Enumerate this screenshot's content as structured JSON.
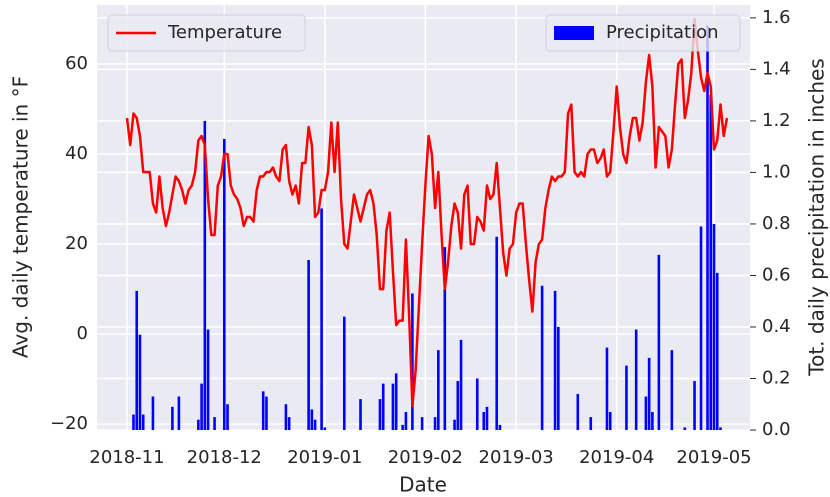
{
  "chart_data": {
    "type": "combo",
    "xlabel": "Date",
    "ylabel": "Avg. daily temperature in °F",
    "y2label": "Tot. daily precipitation in inches",
    "xlim": [
      -9.25,
      192.1
    ],
    "xticks": [
      {
        "value": 0,
        "label": "2018-11"
      },
      {
        "value": 30,
        "label": "2018-12"
      },
      {
        "value": 61,
        "label": "2019-01"
      },
      {
        "value": 92,
        "label": "2019-02"
      },
      {
        "value": 120,
        "label": "2019-03"
      },
      {
        "value": 151,
        "label": "2019-04"
      },
      {
        "value": 181,
        "label": "2019-05"
      }
    ],
    "ylim": [
      -21.3,
      73.1
    ],
    "yticks": [
      {
        "value": -20,
        "label": "−20"
      },
      0,
      20,
      40,
      60
    ],
    "y2lim": [
      0,
      1.65
    ],
    "y2ticks": [
      {
        "value": 0,
        "label": "0.0"
      },
      0.2,
      0.4,
      0.6,
      0.8,
      {
        "value": 1,
        "label": "1.0"
      },
      1.2,
      1.4,
      1.6
    ],
    "grid": true,
    "series": [
      {
        "name": "Temperature",
        "type": "line",
        "color": "#ff0000",
        "legend": "upper left",
        "x": [
          0,
          1,
          2,
          3,
          4,
          5,
          6,
          7,
          8,
          9,
          10,
          11,
          12,
          13,
          14,
          15,
          16,
          17,
          18,
          19,
          20,
          21,
          22,
          23,
          24,
          25,
          26,
          27,
          28,
          29,
          30,
          31,
          32,
          33,
          34,
          35,
          36,
          37,
          38,
          39,
          40,
          41,
          42,
          43,
          44,
          45,
          46,
          47,
          48,
          49,
          50,
          51,
          52,
          53,
          54,
          55,
          56,
          57,
          58,
          59,
          60,
          61,
          62,
          63,
          64,
          65,
          66,
          67,
          68,
          69,
          70,
          71,
          72,
          73,
          74,
          75,
          76,
          77,
          78,
          79,
          80,
          81,
          82,
          83,
          84,
          85,
          86,
          87,
          88,
          89,
          90,
          91,
          92,
          93,
          94,
          95,
          96,
          97,
          98,
          99,
          100,
          101,
          102,
          103,
          104,
          105,
          106,
          107,
          108,
          109,
          110,
          111,
          112,
          113,
          114,
          115,
          116,
          117,
          118,
          119,
          120,
          121,
          122,
          123,
          124,
          125,
          126,
          127,
          128,
          129,
          130,
          131,
          132,
          133,
          134,
          135,
          136,
          137,
          138,
          139,
          140,
          141,
          142,
          143,
          144,
          145,
          146,
          147,
          148,
          149,
          150,
          151,
          152,
          153,
          154,
          155,
          156,
          157,
          158,
          159,
          160,
          161,
          162,
          163,
          164,
          165,
          166,
          167,
          168,
          169,
          170,
          171,
          172,
          173,
          174,
          175,
          176,
          177,
          178,
          179,
          180,
          181,
          182,
          183,
          184,
          185
        ],
        "values": [
          48,
          42,
          49,
          48,
          44,
          36,
          36,
          36,
          29,
          27,
          35,
          28,
          24,
          27,
          31,
          35,
          34,
          32,
          29,
          32,
          33,
          36,
          43,
          44,
          42,
          30,
          22,
          22,
          33,
          35,
          40,
          40,
          33,
          31,
          30,
          28,
          24,
          26,
          26,
          25,
          32,
          35,
          35,
          36,
          36,
          37,
          35,
          34,
          41,
          42,
          34,
          31,
          33,
          29,
          38,
          38,
          46,
          42,
          26,
          27,
          32,
          32,
          36,
          47,
          36,
          47,
          30,
          20,
          19,
          25,
          31,
          28,
          25,
          28,
          31,
          32,
          29,
          22,
          10,
          10,
          23,
          27,
          14,
          2,
          3,
          3,
          21,
          4,
          -16,
          -8,
          6,
          20,
          33,
          44,
          40,
          28,
          36,
          22,
          10,
          16,
          24,
          29,
          27,
          19,
          31,
          33,
          20,
          20,
          26,
          25,
          23,
          33,
          30,
          31,
          38,
          28,
          18,
          13,
          19,
          20,
          27,
          29,
          29,
          20,
          12,
          5,
          16,
          20,
          21,
          28,
          32,
          35,
          34,
          35,
          35,
          36,
          49,
          51,
          36,
          35,
          36,
          35,
          40,
          41,
          41,
          38,
          39,
          41,
          35,
          36,
          45,
          55,
          46,
          40,
          38,
          44,
          48,
          48,
          43,
          47,
          56,
          62,
          55,
          37,
          46,
          45,
          44,
          37,
          41,
          51,
          60,
          61,
          48,
          52,
          58,
          70,
          63,
          57,
          54,
          58,
          55,
          41,
          43,
          51,
          44,
          48
        ]
      },
      {
        "name": "Precipitation",
        "type": "bar",
        "axis": "y2",
        "color": "#0000ff",
        "legend": "upper right",
        "x": [
          2,
          3,
          4,
          5,
          8,
          14,
          16,
          22,
          23,
          24,
          25,
          27,
          30,
          31,
          42,
          43,
          49,
          50,
          56,
          57,
          58,
          60,
          61,
          67,
          72,
          78,
          79,
          82,
          83,
          85,
          86,
          88,
          91,
          95,
          96,
          98,
          101,
          102,
          103,
          108,
          110,
          111,
          114,
          115,
          128,
          132,
          133,
          139,
          143,
          148,
          149,
          154,
          157,
          160,
          161,
          162,
          164,
          168,
          172,
          175,
          177,
          179,
          180,
          181,
          182,
          183
        ],
        "values": [
          0.06,
          0.54,
          0.37,
          0.06,
          0.13,
          0.09,
          0.13,
          0.04,
          0.18,
          1.2,
          0.39,
          0.05,
          1.13,
          0.1,
          0.15,
          0.13,
          0.1,
          0.05,
          0.66,
          0.08,
          0.04,
          0.86,
          0.01,
          0.44,
          0.12,
          0.12,
          0.18,
          0.18,
          0.22,
          0.02,
          0.07,
          0.53,
          0.05,
          0.05,
          0.31,
          0.71,
          0.04,
          0.19,
          0.35,
          0.2,
          0.07,
          0.09,
          0.75,
          0.02,
          0.56,
          0.54,
          0.4,
          0.14,
          0.05,
          0.32,
          0.07,
          0.25,
          0.39,
          0.13,
          0.28,
          0.07,
          0.68,
          0.31,
          0.01,
          0.19,
          0.79,
          1.57,
          1.3,
          0.8,
          0.61,
          0.01
        ]
      }
    ]
  }
}
